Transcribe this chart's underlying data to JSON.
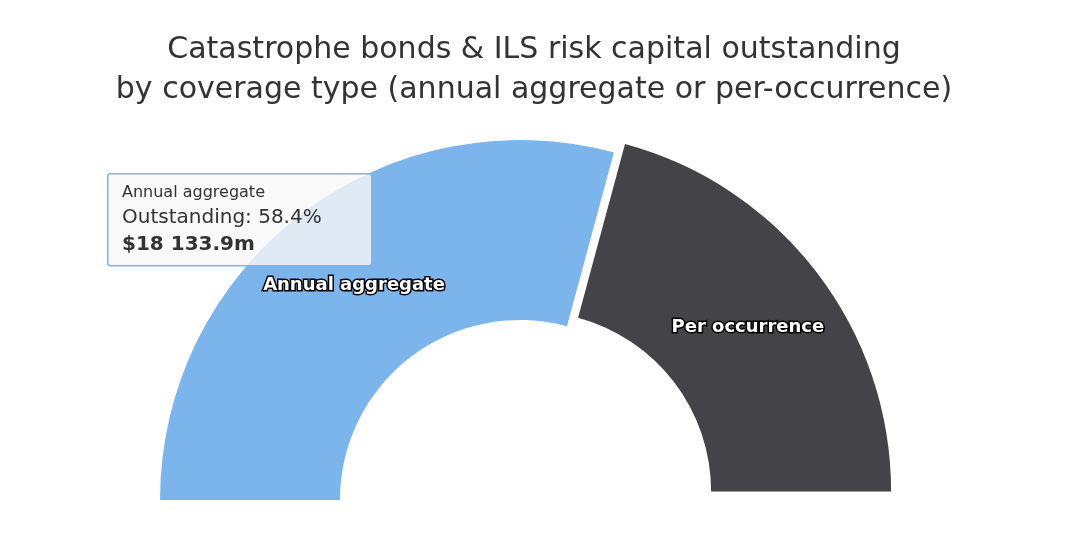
{
  "chart_data": {
    "type": "donut",
    "title": "Catastrophe bonds & ILS risk capital outstanding\nby coverage type (annual aggregate or per-occurrence)",
    "categories": [
      "Annual aggregate",
      "Per occurrence"
    ],
    "values": [
      58.4,
      41.6
    ],
    "colors": [
      "#7cb5ec",
      "#434348"
    ],
    "annotations": [
      "Annual aggregate",
      "Outstanding: 58.4%",
      "$18 133.9m"
    ]
  }
}
